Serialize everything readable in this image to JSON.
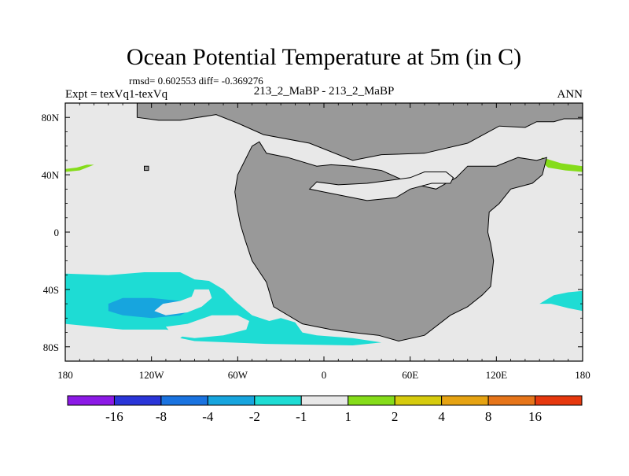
{
  "chart_data": {
    "type": "contour-map",
    "title": "Ocean Potential Temperature at 5m (in C)",
    "stats": "rmsd= 0.602553 diff= -0.369276",
    "case_label": "213_2_MaBP - 213_2_MaBP",
    "left_label": "Expt = texVq1-texVq",
    "right_label": "ANN",
    "x_range": [
      -180,
      180
    ],
    "y_range": [
      -90,
      90
    ],
    "x_ticks": [
      {
        "value": -180,
        "label": "180"
      },
      {
        "value": -120,
        "label": "120W"
      },
      {
        "value": -60,
        "label": "60W"
      },
      {
        "value": 0,
        "label": "0"
      },
      {
        "value": 60,
        "label": "60E"
      },
      {
        "value": 120,
        "label": "120E"
      },
      {
        "value": 180,
        "label": "180"
      }
    ],
    "y_ticks": [
      {
        "value": 80,
        "label": "80N"
      },
      {
        "value": 40,
        "label": "40N"
      },
      {
        "value": 0,
        "label": "0"
      },
      {
        "value": -40,
        "label": "40S"
      },
      {
        "value": -80,
        "label": "80S"
      }
    ],
    "background_color": "#e8e8e8",
    "land_color": "#999999",
    "colorbar": {
      "colors": [
        "#8c1ae6",
        "#2a35d8",
        "#1a73e0",
        "#17a5de",
        "#1edcd4",
        "#e8e8e8",
        "#85dc1a",
        "#d6cb0d",
        "#e6a312",
        "#e6751a",
        "#e6380e"
      ],
      "labels": [
        "-16",
        "-8",
        "-4",
        "-2",
        "-1",
        "1",
        "2",
        "4",
        "8",
        "16"
      ]
    },
    "land": [
      {
        "name": "north-polar-land",
        "points": [
          [
            -130,
            90
          ],
          [
            180,
            90
          ],
          [
            180,
            79
          ],
          [
            167,
            79
          ],
          [
            160,
            77
          ],
          [
            148,
            77
          ],
          [
            140,
            73
          ],
          [
            122,
            74
          ],
          [
            100,
            62
          ],
          [
            70,
            55
          ],
          [
            40,
            54
          ],
          [
            20,
            50
          ],
          [
            -10,
            62
          ],
          [
            -42,
            68
          ],
          [
            -60,
            76
          ],
          [
            -75,
            82
          ],
          [
            -100,
            78
          ],
          [
            -115,
            78
          ],
          [
            -130,
            80
          ]
        ]
      },
      {
        "name": "south-america-africa",
        "points": [
          [
            -45,
            63
          ],
          [
            -40,
            55
          ],
          [
            -25,
            52
          ],
          [
            -5,
            46
          ],
          [
            5,
            47
          ],
          [
            20,
            46
          ],
          [
            40,
            43
          ],
          [
            60,
            34
          ],
          [
            78,
            30
          ],
          [
            92,
            38
          ],
          [
            100,
            46
          ],
          [
            120,
            46
          ],
          [
            135,
            52
          ],
          [
            148,
            50
          ],
          [
            155,
            52
          ],
          [
            152,
            40
          ],
          [
            145,
            34
          ],
          [
            130,
            30
          ],
          [
            122,
            20
          ],
          [
            115,
            14
          ],
          [
            114,
            0
          ],
          [
            116,
            -8
          ],
          [
            118,
            -20
          ],
          [
            116,
            -38
          ],
          [
            110,
            -44
          ],
          [
            100,
            -52
          ],
          [
            88,
            -58
          ],
          [
            70,
            -72
          ],
          [
            52,
            -76
          ],
          [
            38,
            -72
          ],
          [
            20,
            -70
          ],
          [
            5,
            -68
          ],
          [
            -15,
            -64
          ],
          [
            -35,
            -52
          ],
          [
            -40,
            -35
          ],
          [
            -50,
            -20
          ],
          [
            -55,
            -5
          ],
          [
            -58,
            5
          ],
          [
            -60,
            15
          ],
          [
            -62,
            28
          ],
          [
            -60,
            40
          ],
          [
            -55,
            50
          ],
          [
            -50,
            60
          ]
        ]
      },
      {
        "name": "small-island",
        "points": [
          [
            -125,
            46
          ],
          [
            -122,
            46
          ],
          [
            -122,
            43
          ],
          [
            -125,
            43
          ]
        ]
      }
    ],
    "ocean_gaps": [
      {
        "name": "mediterranean",
        "points": [
          [
            -10,
            30
          ],
          [
            -5,
            35
          ],
          [
            10,
            33
          ],
          [
            30,
            34
          ],
          [
            60,
            38
          ],
          [
            70,
            42
          ],
          [
            85,
            42
          ],
          [
            90,
            38
          ],
          [
            88,
            34
          ],
          [
            75,
            34
          ],
          [
            60,
            30
          ],
          [
            50,
            24
          ],
          [
            30,
            22
          ],
          [
            10,
            26
          ],
          [
            0,
            28
          ]
        ]
      }
    ],
    "contours": [
      {
        "name": "south-pacific-minus1-region",
        "level": "-1 to -2",
        "color": "#1edcd4",
        "points": [
          [
            -180,
            -29
          ],
          [
            -150,
            -30
          ],
          [
            -125,
            -28
          ],
          [
            -100,
            -28
          ],
          [
            -90,
            -33
          ],
          [
            -80,
            -34
          ],
          [
            -70,
            -40
          ],
          [
            -62,
            -48
          ],
          [
            -50,
            -58
          ],
          [
            -38,
            -62
          ],
          [
            -30,
            -60
          ],
          [
            -20,
            -63
          ],
          [
            -15,
            -70
          ],
          [
            -5,
            -72
          ],
          [
            20,
            -74
          ],
          [
            40,
            -77
          ],
          [
            20,
            -79
          ],
          [
            -40,
            -78
          ],
          [
            -90,
            -76
          ],
          [
            -100,
            -74
          ],
          [
            -95,
            -70
          ],
          [
            -110,
            -68
          ],
          [
            -140,
            -68
          ],
          [
            -160,
            -66
          ],
          [
            -180,
            -64
          ]
        ]
      },
      {
        "name": "south-pacific-minus2-core",
        "level": "-2 to -4",
        "color": "#17a5de",
        "points": [
          [
            -150,
            -50
          ],
          [
            -140,
            -46
          ],
          [
            -120,
            -46
          ],
          [
            -100,
            -48
          ],
          [
            -90,
            -53
          ],
          [
            -100,
            -58
          ],
          [
            -120,
            -60
          ],
          [
            -140,
            -58
          ],
          [
            -150,
            -55
          ]
        ]
      },
      {
        "name": "south-pacific-inner-gap",
        "level": "-1 to 1",
        "color": "#e8e8e8",
        "points": [
          [
            -90,
            -40
          ],
          [
            -80,
            -40
          ],
          [
            -78,
            -46
          ],
          [
            -85,
            -52
          ],
          [
            -95,
            -56
          ],
          [
            -110,
            -58
          ],
          [
            -118,
            -55
          ],
          [
            -112,
            -50
          ],
          [
            -100,
            -48
          ],
          [
            -92,
            -45
          ]
        ]
      },
      {
        "name": "south-atlantic-gap",
        "level": "-1 to 1",
        "color": "#e8e8e8",
        "points": [
          [
            -110,
            -66
          ],
          [
            -95,
            -64
          ],
          [
            -78,
            -58
          ],
          [
            -60,
            -58
          ],
          [
            -52,
            -62
          ],
          [
            -54,
            -68
          ],
          [
            -70,
            -72
          ],
          [
            -90,
            -74
          ],
          [
            -105,
            -72
          ]
        ]
      },
      {
        "name": "north-pacific-warm-west",
        "level": "1 to 2",
        "color": "#85dc1a",
        "points": [
          [
            -180,
            44
          ],
          [
            -172,
            45
          ],
          [
            -165,
            47
          ],
          [
            -160,
            47
          ],
          [
            -170,
            43
          ],
          [
            -180,
            42
          ]
        ]
      },
      {
        "name": "north-pacific-warm-east",
        "level": "1 to 2",
        "color": "#85dc1a",
        "points": [
          [
            152,
            52
          ],
          [
            165,
            48
          ],
          [
            180,
            46
          ],
          [
            180,
            42
          ],
          [
            168,
            43
          ],
          [
            156,
            45
          ],
          [
            150,
            50
          ]
        ]
      },
      {
        "name": "south-indian-cool",
        "level": "-1 to -2",
        "color": "#1edcd4",
        "points": [
          [
            150,
            -50
          ],
          [
            160,
            -44
          ],
          [
            170,
            -42
          ],
          [
            180,
            -41
          ],
          [
            180,
            -55
          ],
          [
            170,
            -53
          ],
          [
            158,
            -50
          ]
        ]
      }
    ]
  }
}
